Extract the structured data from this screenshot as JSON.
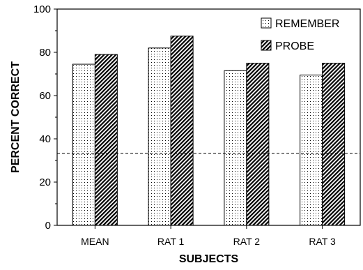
{
  "chart_data": {
    "type": "bar",
    "title": "",
    "xlabel": "SUBJECTS",
    "ylabel": "PERCENT CORRECT",
    "ylim": [
      0,
      100
    ],
    "yticks": [
      0,
      20,
      40,
      60,
      80,
      100
    ],
    "categories": [
      "MEAN",
      "RAT 1",
      "RAT 2",
      "RAT 3"
    ],
    "series": [
      {
        "name": "REMEMBER",
        "values": [
          74.5,
          82,
          71.5,
          69.5
        ],
        "pattern": "dots"
      },
      {
        "name": "PROBE",
        "values": [
          79,
          87.5,
          75,
          75
        ],
        "pattern": "diagonal-hatch"
      }
    ],
    "reference_line": {
      "y": 33.3,
      "style": "dashed"
    },
    "legend_position": "top-right",
    "grid": false
  }
}
